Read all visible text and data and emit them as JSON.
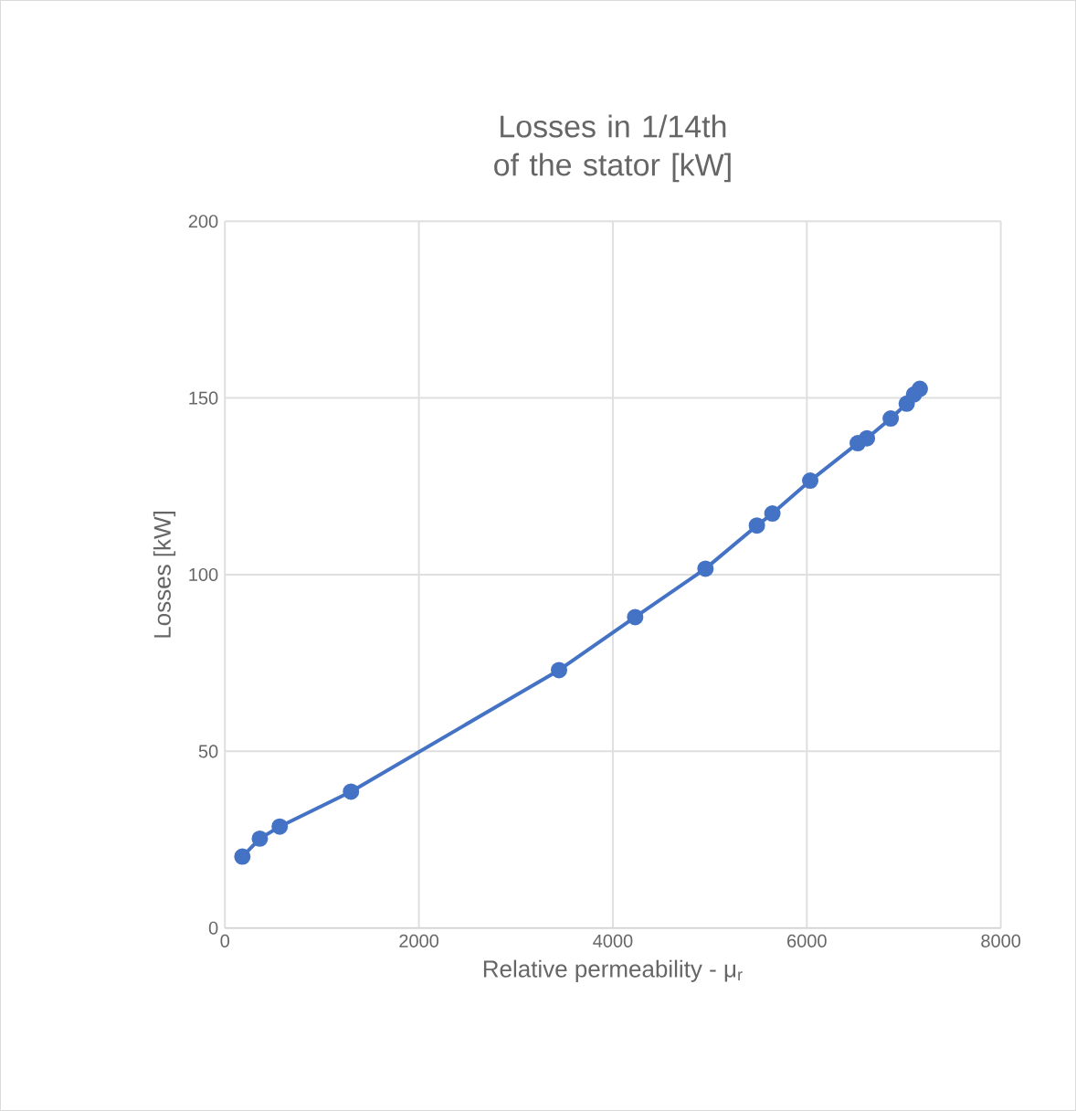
{
  "chart_data": {
    "type": "line",
    "title": "Losses in 1/14th of the stator [kW]",
    "xlabel": "Relative permeability - μ$_{r}$",
    "ylabel": "Losses [kW]",
    "x": [
      180,
      360,
      565,
      1300,
      3445,
      4230,
      4955,
      5485,
      5645,
      6035,
      6525,
      6620,
      6865,
      7030,
      7105,
      7165
    ],
    "values": [
      20.2,
      25.3,
      28.7,
      38.6,
      73,
      88,
      101.7,
      113.9,
      117.3,
      126.6,
      137.2,
      138.6,
      144.2,
      148.4,
      151,
      152.6
    ],
    "color": "#4472c4",
    "marker": "circle",
    "xlim": [
      0,
      8000
    ],
    "xticks": [
      0,
      2000,
      4000,
      6000,
      8000
    ],
    "ylim": [
      0,
      200
    ],
    "yticks": [
      0,
      50,
      100,
      150,
      200
    ],
    "grid": true
  }
}
